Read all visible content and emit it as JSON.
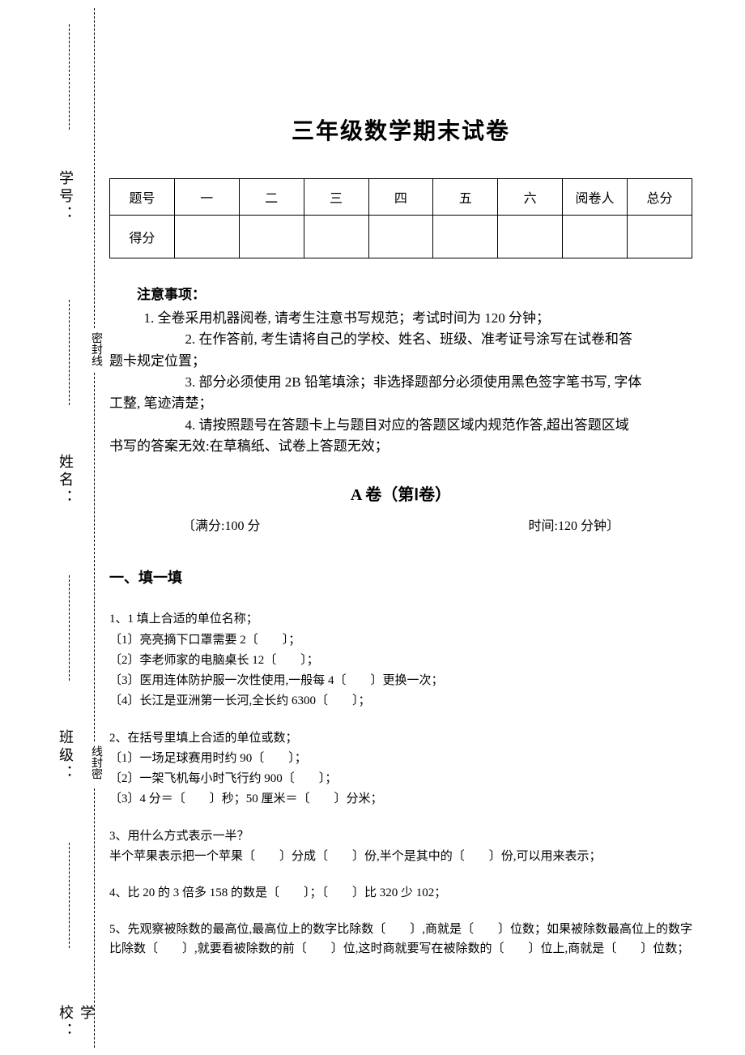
{
  "binding": {
    "label_student_id": "学号：",
    "label_name": "姓名：",
    "label_class": "班级：",
    "label_school": "学校：",
    "seal_text_1": "密封线",
    "seal_text_2": "线封密"
  },
  "title": "三年级数学期末试卷",
  "score_table": {
    "header": [
      "题号",
      "一",
      "二",
      "三",
      "四",
      "五",
      "六",
      "阅卷人",
      "总分"
    ],
    "row2_label": "得分"
  },
  "notice": {
    "heading": "注意事项：",
    "items": [
      "1. 全卷采用机器阅卷, 请考生注意书写规范；考试时间为 120 分钟；",
      "2. 在作答前, 考生请将自己的学校、姓名、班级、准考证号涂写在试卷和答题卡规定位置；",
      "3. 部分必须使用 2B 铅笔填涂；非选择题部分必须使用黑色签字笔书写, 字体工整, 笔迹清楚；",
      "4. 请按照题号在答题卡上与题目对应的答题区域内规范作答,超出答题区域书写的答案无效:在草稿纸、试卷上答题无效；"
    ]
  },
  "section_a": {
    "label": "A 卷（第Ⅰ卷）",
    "full_marks": "〔满分:100 分",
    "time": "时间:120 分钟〕"
  },
  "section1": {
    "heading": "一、填一填",
    "q1": {
      "stem": "1、1 填上合适的单位名称；",
      "l1": "〔1〕亮亮摘下口罩需要 2〔　　〕；",
      "l2": "〔2〕李老师家的电脑桌长 12〔　　〕；",
      "l3": "〔3〕医用连体防护服一次性使用,一般每 4〔　　〕更换一次；",
      "l4": "〔4〕长江是亚洲第一长河,全长约 6300〔　　〕；"
    },
    "q2": {
      "stem": "2、在括号里填上合适的单位或数；",
      "l1": "〔1〕一场足球赛用时约 90〔　　〕；",
      "l2": "〔2〕一架飞机每小时飞行约 900〔　　〕；",
      "l3": "〔3〕4 分＝〔　　〕秒；50 厘米＝〔　　〕分米；"
    },
    "q3": {
      "stem": "3、用什么方式表示一半？",
      "l1": "半个苹果表示把一个苹果〔　　〕分成〔　　〕份,半个是其中的〔　　〕份,可以用来表示；"
    },
    "q4": {
      "l1": "4、比 20 的 3 倍多 158 的数是〔　　〕；〔　　〕比 320 少 102；"
    },
    "q5": {
      "l1": "5、先观察被除数的最高位,最高位上的数字比除数〔　　〕,商就是〔　　〕位数；如果被除数最高位上的数字比除数〔　　〕,就要看被除数的前〔　　〕位,这时商就要写在被除数的〔　　〕位上,商就是〔　　〕位数；"
    }
  }
}
